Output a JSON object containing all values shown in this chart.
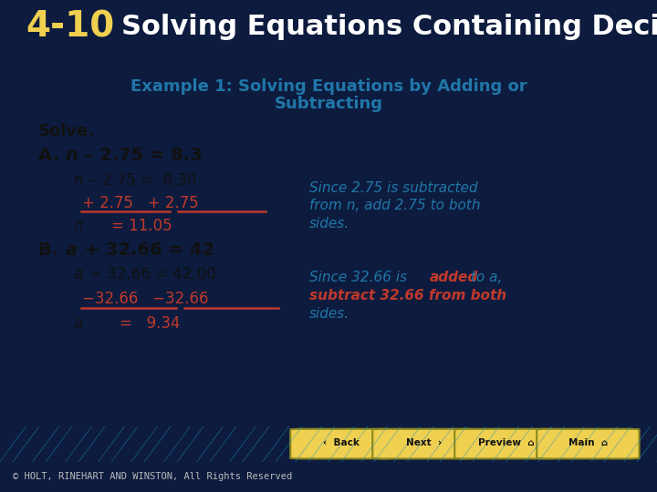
{
  "header_bg": "#0d1b3e",
  "header_text_num": "4-10",
  "header_text_title": "Solving Equations Containing Decimals",
  "header_text_color": "#ffffff",
  "content_bg": "#ffffff",
  "example_title_color": "#2077a8",
  "solve_color": "#111111",
  "red": "#c0392b",
  "note_color": "#2077a8",
  "nav_bg": "#1a9ad7",
  "nav_button_color": "#f0d050",
  "footer_copyright": "© HOLT, RINEHART AND WINSTON, All Rights Reserved"
}
